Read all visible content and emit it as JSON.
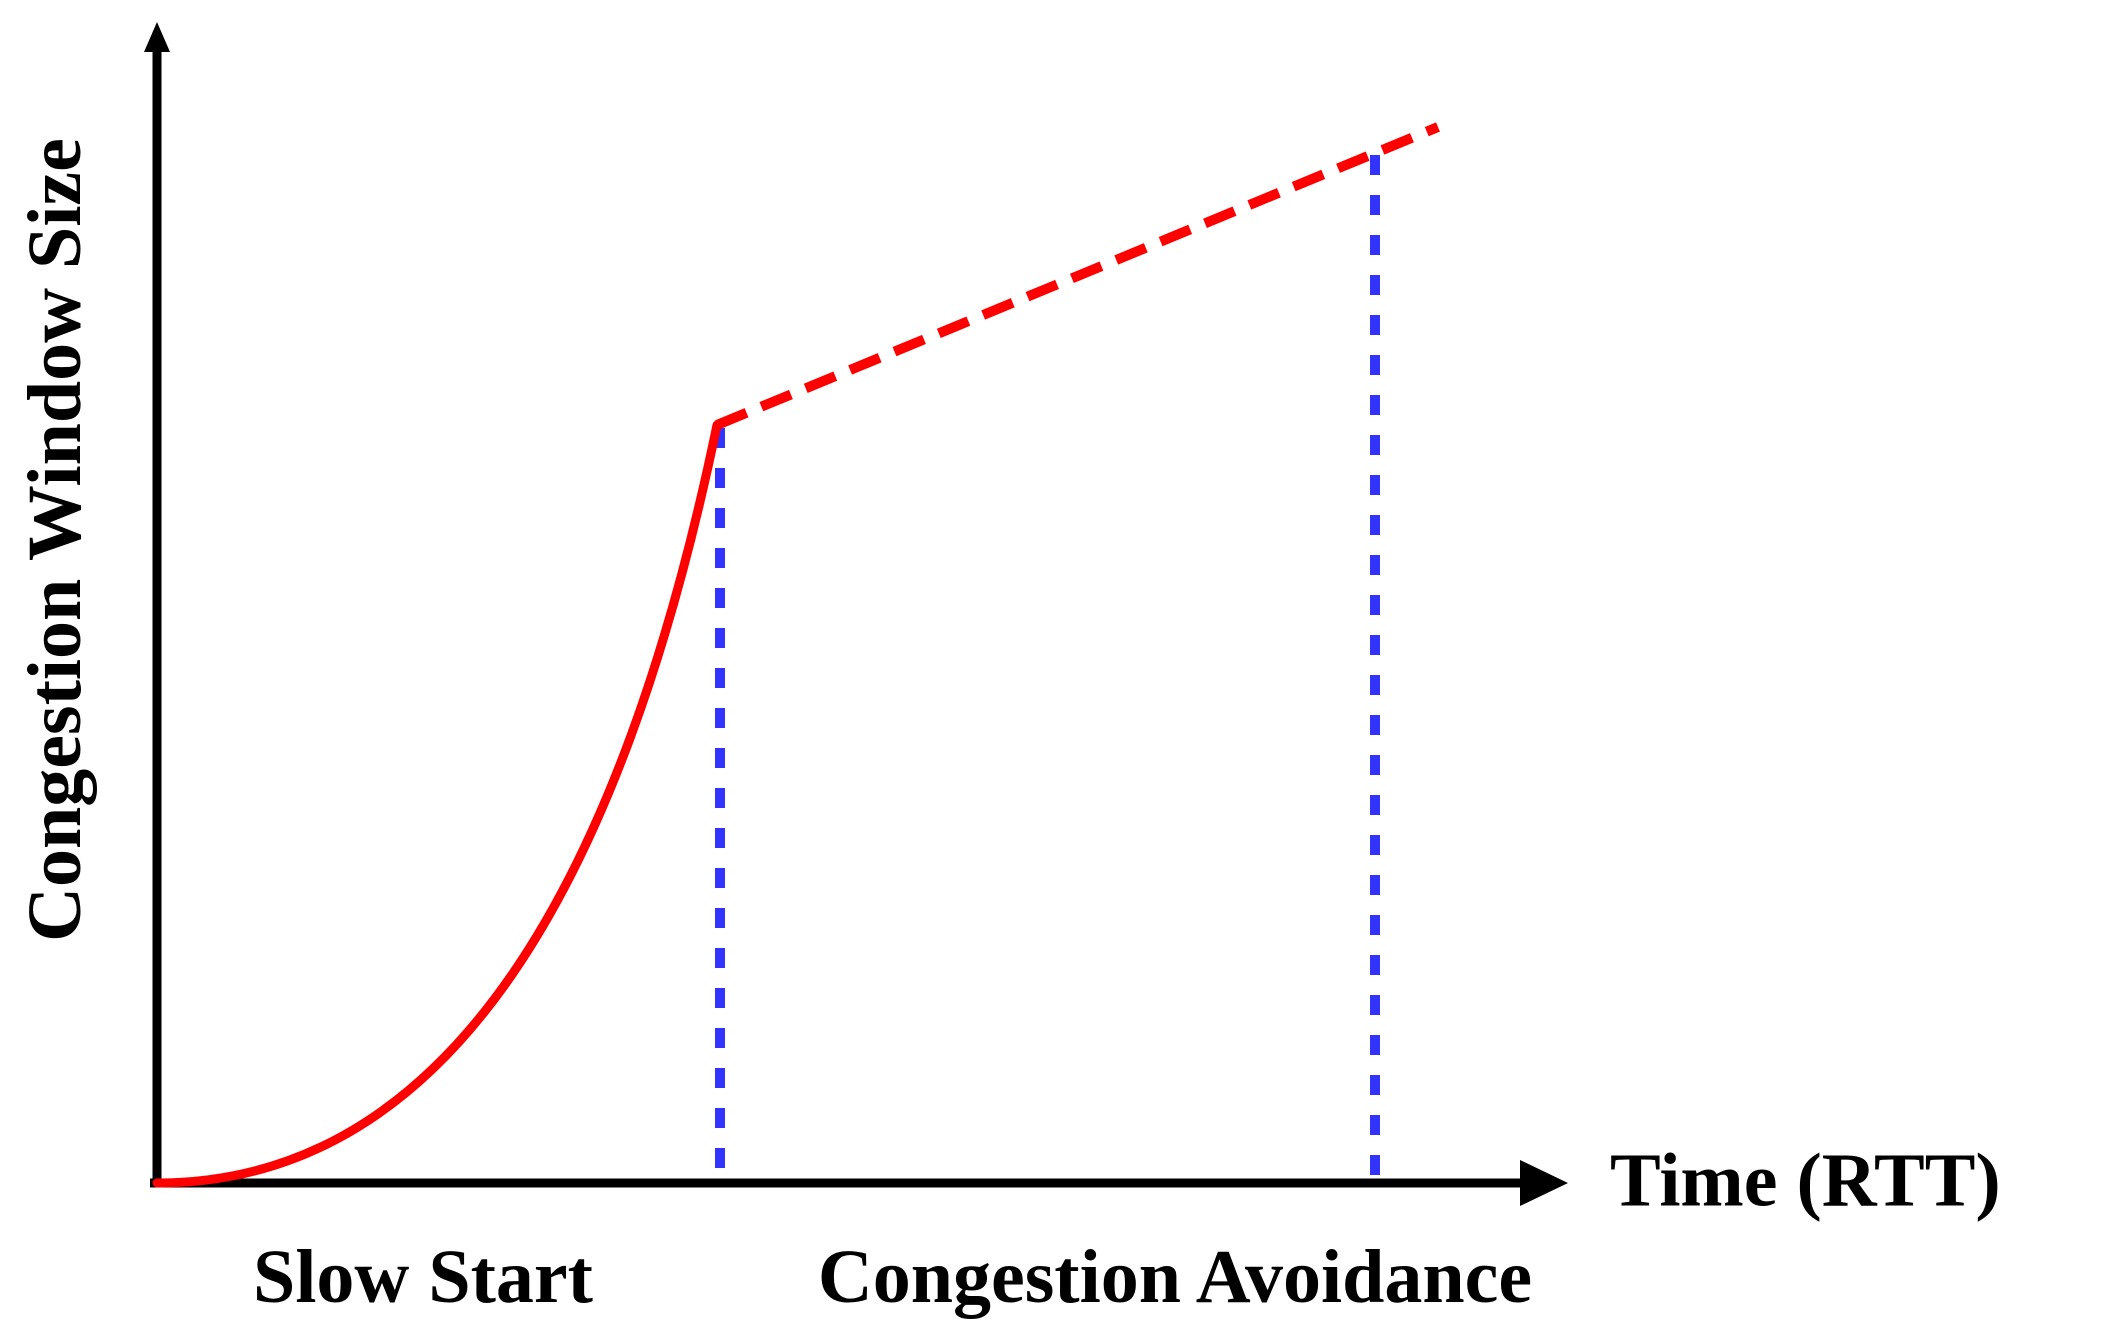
{
  "diagram": {
    "y_axis_label": "Congestion Window Size",
    "x_axis_label": "Time (RTT)",
    "phases": [
      {
        "label": "Slow Start"
      },
      {
        "label": "Congestion Avoidance"
      }
    ],
    "colors": {
      "axes": "#000000",
      "curve": "#ff0000",
      "phase_boundary": "#3333ff",
      "background": "#ffffff"
    }
  }
}
